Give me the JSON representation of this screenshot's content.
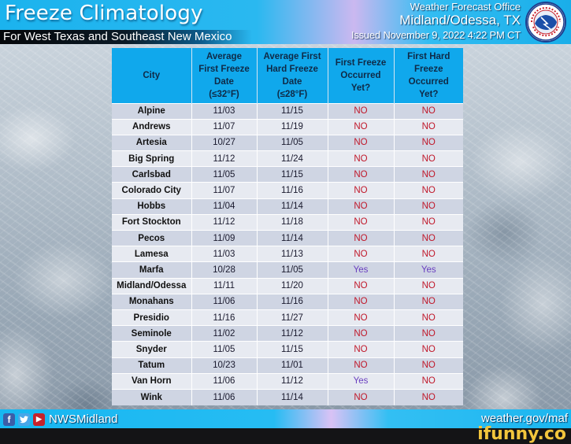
{
  "header": {
    "title": "Freeze Climatology",
    "subtitle": "For West Texas and Southeast New Mexico",
    "office_line1": "Weather Forecast Office",
    "office_line2": "Midland/Odessa, TX",
    "issued": "Issued November 9, 2022 4:22 PM CT",
    "logo": "nws-logo-icon",
    "logo_text": "NATIONAL WEATHER SERVICE"
  },
  "table": {
    "columns": [
      "City",
      "Average First Freeze Date (≤32°F)",
      "Average First Hard Freeze Date (≤28°F)",
      "First Freeze Occurred Yet?",
      "First Hard Freeze Occurred Yet?"
    ],
    "column_lines": [
      [
        "City"
      ],
      [
        "Average",
        "First Freeze",
        "Date",
        "(≤32°F)"
      ],
      [
        "Average First",
        "Hard Freeze",
        "Date",
        "(≤28°F)"
      ],
      [
        "First Freeze",
        "Occurred",
        "Yet?"
      ],
      [
        "First Hard",
        "Freeze",
        "Occurred",
        "Yet?"
      ]
    ],
    "rows": [
      {
        "city": "Alpine",
        "first_freeze": "11/03",
        "hard_freeze": "11/15",
        "freeze_yet": "NO",
        "hard_yet": "NO"
      },
      {
        "city": "Andrews",
        "first_freeze": "11/07",
        "hard_freeze": "11/19",
        "freeze_yet": "NO",
        "hard_yet": "NO"
      },
      {
        "city": "Artesia",
        "first_freeze": "10/27",
        "hard_freeze": "11/05",
        "freeze_yet": "NO",
        "hard_yet": "NO"
      },
      {
        "city": "Big Spring",
        "first_freeze": "11/12",
        "hard_freeze": "11/24",
        "freeze_yet": "NO",
        "hard_yet": "NO"
      },
      {
        "city": "Carlsbad",
        "first_freeze": "11/05",
        "hard_freeze": "11/15",
        "freeze_yet": "NO",
        "hard_yet": "NO"
      },
      {
        "city": "Colorado City",
        "first_freeze": "11/07",
        "hard_freeze": "11/16",
        "freeze_yet": "NO",
        "hard_yet": "NO"
      },
      {
        "city": "Hobbs",
        "first_freeze": "11/04",
        "hard_freeze": "11/14",
        "freeze_yet": "NO",
        "hard_yet": "NO"
      },
      {
        "city": "Fort Stockton",
        "first_freeze": "11/12",
        "hard_freeze": "11/18",
        "freeze_yet": "NO",
        "hard_yet": "NO"
      },
      {
        "city": "Pecos",
        "first_freeze": "11/09",
        "hard_freeze": "11/14",
        "freeze_yet": "NO",
        "hard_yet": "NO"
      },
      {
        "city": "Lamesa",
        "first_freeze": "11/03",
        "hard_freeze": "11/13",
        "freeze_yet": "NO",
        "hard_yet": "NO"
      },
      {
        "city": "Marfa",
        "first_freeze": "10/28",
        "hard_freeze": "11/05",
        "freeze_yet": "Yes",
        "hard_yet": "Yes"
      },
      {
        "city": "Midland/Odessa",
        "first_freeze": "11/11",
        "hard_freeze": "11/20",
        "freeze_yet": "NO",
        "hard_yet": "NO"
      },
      {
        "city": "Monahans",
        "first_freeze": "11/06",
        "hard_freeze": "11/16",
        "freeze_yet": "NO",
        "hard_yet": "NO"
      },
      {
        "city": "Presidio",
        "first_freeze": "11/16",
        "hard_freeze": "11/27",
        "freeze_yet": "NO",
        "hard_yet": "NO"
      },
      {
        "city": "Seminole",
        "first_freeze": "11/02",
        "hard_freeze": "11/12",
        "freeze_yet": "NO",
        "hard_yet": "NO"
      },
      {
        "city": "Snyder",
        "first_freeze": "11/05",
        "hard_freeze": "11/15",
        "freeze_yet": "NO",
        "hard_yet": "NO"
      },
      {
        "city": "Tatum",
        "first_freeze": "10/23",
        "hard_freeze": "11/01",
        "freeze_yet": "NO",
        "hard_yet": "NO"
      },
      {
        "city": "Van Horn",
        "first_freeze": "11/06",
        "hard_freeze": "11/12",
        "freeze_yet": "Yes",
        "hard_yet": "NO"
      },
      {
        "city": "Wink",
        "first_freeze": "11/06",
        "hard_freeze": "11/14",
        "freeze_yet": "NO",
        "hard_yet": "NO"
      }
    ]
  },
  "footer": {
    "social_icons": [
      "facebook-icon",
      "twitter-icon",
      "youtube-icon"
    ],
    "facebook_glyph": "f",
    "twitter_glyph": "🐦",
    "youtube_glyph": "▶",
    "handle": "NWSMidland",
    "website": "weather.gov/maf"
  },
  "watermark": "ifunny.co",
  "colors": {
    "header_blue": "#1bb3ee",
    "table_header": "#10a8ec",
    "row_odd": "#cfd5e3",
    "row_even": "#e7eaf1",
    "no_color": "#c0182a",
    "yes_color": "#6a3fc0",
    "watermark": "#f2c53c"
  }
}
